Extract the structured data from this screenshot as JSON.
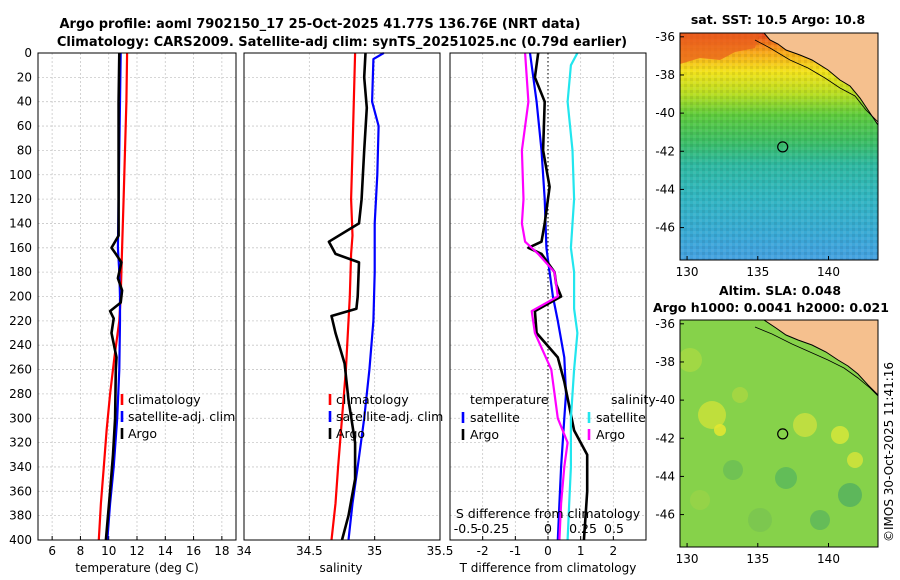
{
  "title_line1": "Argo profile: aoml 7902150_17 25-Oct-2025 41.77S 136.76E (NRT data)",
  "title_line2": "Climatology: CARS2009. Satellite-adj clim: synTS_20251025.nc (0.79d earlier)",
  "watermark": "©IMOS 30-Oct-2025 11:41:16",
  "colors": {
    "clim": "#ff0000",
    "sat": "#0000ff",
    "argo": "#000000",
    "sdiff_sat": "#22e6ee",
    "sdiff_argo": "#ff00ff",
    "land": "#f5c08e",
    "coast": "#000000"
  },
  "chart_data": [
    {
      "type": "line",
      "name": "temperature",
      "xlabel": "temperature (deg C)",
      "xlim": [
        5,
        19
      ],
      "ylim": [
        0,
        400
      ],
      "xticks": [
        6,
        8,
        10,
        12,
        14,
        16,
        18
      ],
      "yticks": [
        0,
        20,
        40,
        60,
        80,
        100,
        120,
        140,
        160,
        180,
        200,
        220,
        240,
        260,
        280,
        300,
        320,
        340,
        360,
        380,
        400
      ],
      "legend": [
        "climatology",
        "satellite-adj. clim",
        "Argo"
      ],
      "series": [
        {
          "name": "climatology",
          "color": "#ff0000",
          "points": [
            [
              11.3,
              0
            ],
            [
              11.25,
              40
            ],
            [
              11.15,
              80
            ],
            [
              11.05,
              120
            ],
            [
              10.95,
              160
            ],
            [
              10.85,
              200
            ],
            [
              10.75,
              220
            ],
            [
              10.4,
              250
            ],
            [
              10.1,
              280
            ],
            [
              9.85,
              310
            ],
            [
              9.65,
              340
            ],
            [
              9.45,
              370
            ],
            [
              9.3,
              400
            ]
          ]
        },
        {
          "name": "satellite-adj. clim",
          "color": "#0000ff",
          "points": [
            [
              10.85,
              0
            ],
            [
              10.8,
              40
            ],
            [
              10.75,
              80
            ],
            [
              10.7,
              120
            ],
            [
              10.65,
              160
            ],
            [
              10.75,
              180
            ],
            [
              10.8,
              200
            ],
            [
              10.8,
              220
            ],
            [
              10.75,
              260
            ],
            [
              10.6,
              300
            ],
            [
              10.35,
              340
            ],
            [
              10.1,
              370
            ],
            [
              9.9,
              400
            ]
          ]
        },
        {
          "name": "Argo",
          "color": "#000000",
          "points": [
            [
              10.75,
              0
            ],
            [
              10.7,
              40
            ],
            [
              10.7,
              80
            ],
            [
              10.7,
              120
            ],
            [
              10.7,
              150
            ],
            [
              10.2,
              160
            ],
            [
              10.5,
              165
            ],
            [
              10.9,
              172
            ],
            [
              10.65,
              185
            ],
            [
              10.95,
              195
            ],
            [
              10.85,
              205
            ],
            [
              10.1,
              212
            ],
            [
              10.35,
              218
            ],
            [
              10.2,
              230
            ],
            [
              10.55,
              250
            ],
            [
              10.5,
              260
            ],
            [
              10.45,
              300
            ],
            [
              10.3,
              330
            ],
            [
              10.1,
              360
            ],
            [
              9.95,
              380
            ],
            [
              9.8,
              400
            ]
          ]
        }
      ]
    },
    {
      "type": "line",
      "name": "salinity",
      "xlabel": "salinity",
      "xlim": [
        34,
        35.5
      ],
      "ylim": [
        0,
        400
      ],
      "xticks": [
        34,
        34.5,
        35,
        35.5
      ],
      "legend": [
        "climatology",
        "satellite-adj. clim",
        "Argo"
      ],
      "series": [
        {
          "name": "climatology",
          "color": "#ff0000",
          "points": [
            [
              34.85,
              0
            ],
            [
              34.84,
              40
            ],
            [
              34.83,
              80
            ],
            [
              34.82,
              120
            ],
            [
              34.83,
              150
            ],
            [
              34.82,
              165
            ],
            [
              34.81,
              200
            ],
            [
              34.8,
              220
            ],
            [
              34.78,
              260
            ],
            [
              34.75,
              300
            ],
            [
              34.72,
              340
            ],
            [
              34.7,
              370
            ],
            [
              34.67,
              400
            ]
          ]
        },
        {
          "name": "satellite-adj. clim",
          "color": "#0000ff",
          "points": [
            [
              35.07,
              0
            ],
            [
              34.99,
              5
            ],
            [
              34.98,
              40
            ],
            [
              35.03,
              60
            ],
            [
              35.02,
              100
            ],
            [
              35.0,
              140
            ],
            [
              35.0,
              180
            ],
            [
              34.99,
              220
            ],
            [
              34.96,
              260
            ],
            [
              34.92,
              300
            ],
            [
              34.87,
              340
            ],
            [
              34.83,
              370
            ],
            [
              34.8,
              400
            ]
          ]
        },
        {
          "name": "Argo",
          "color": "#000000",
          "points": [
            [
              34.93,
              0
            ],
            [
              34.92,
              20
            ],
            [
              34.94,
              45
            ],
            [
              34.92,
              80
            ],
            [
              34.9,
              120
            ],
            [
              34.88,
              140
            ],
            [
              34.65,
              155
            ],
            [
              34.7,
              165
            ],
            [
              34.88,
              172
            ],
            [
              34.87,
              200
            ],
            [
              34.86,
              210
            ],
            [
              34.67,
              216
            ],
            [
              34.7,
              230
            ],
            [
              34.77,
              255
            ],
            [
              34.8,
              285
            ],
            [
              34.85,
              320
            ],
            [
              34.85,
              350
            ],
            [
              34.8,
              380
            ],
            [
              34.75,
              400
            ]
          ]
        }
      ]
    },
    {
      "type": "line",
      "name": "difference",
      "xlabel": "T difference from climatology",
      "xlabel2": "S difference from climatology",
      "xlim": [
        -3,
        3
      ],
      "ylim": [
        0,
        400
      ],
      "xticks": [
        -2,
        -1,
        0,
        1,
        2
      ],
      "xticks_s": [
        "-0.5",
        "-0.25",
        "0",
        "0.25",
        "0.5"
      ],
      "legend_left_title": "temperature",
      "legend_right_title": "salinity",
      "legend_left": [
        "satellite",
        "Argo"
      ],
      "legend_right": [
        "satellite",
        "Argo"
      ],
      "series": [
        {
          "name": "T satellite",
          "color": "#0000ff",
          "points": [
            [
              -0.55,
              0
            ],
            [
              -0.35,
              40
            ],
            [
              -0.2,
              80
            ],
            [
              -0.1,
              120
            ],
            [
              -0.05,
              160
            ],
            [
              0.05,
              180
            ],
            [
              0.15,
              200
            ],
            [
              0.3,
              220
            ],
            [
              0.5,
              250
            ],
            [
              0.55,
              280
            ],
            [
              0.5,
              300
            ],
            [
              0.4,
              340
            ],
            [
              0.35,
              370
            ],
            [
              0.3,
              400
            ]
          ]
        },
        {
          "name": "T Argo",
          "color": "#000000",
          "points": [
            [
              -0.3,
              0
            ],
            [
              -0.4,
              20
            ],
            [
              -0.1,
              40
            ],
            [
              -0.15,
              80
            ],
            [
              0.05,
              110
            ],
            [
              -0.1,
              140
            ],
            [
              -0.2,
              155
            ],
            [
              -0.6,
              160
            ],
            [
              -0.2,
              165
            ],
            [
              0.2,
              180
            ],
            [
              0.25,
              190
            ],
            [
              0.4,
              200
            ],
            [
              -0.4,
              212
            ],
            [
              -0.35,
              230
            ],
            [
              0.3,
              250
            ],
            [
              0.5,
              270
            ],
            [
              0.8,
              310
            ],
            [
              1.2,
              330
            ],
            [
              1.2,
              360
            ],
            [
              1.15,
              380
            ],
            [
              1.1,
              400
            ]
          ]
        },
        {
          "name": "S satellite",
          "color": "#22e6ee",
          "points": [
            [
              0.9,
              0
            ],
            [
              0.7,
              10
            ],
            [
              0.6,
              40
            ],
            [
              0.75,
              80
            ],
            [
              0.8,
              120
            ],
            [
              0.7,
              160
            ],
            [
              0.8,
              180
            ],
            [
              0.8,
              210
            ],
            [
              0.9,
              230
            ],
            [
              0.8,
              260
            ],
            [
              0.7,
              300
            ],
            [
              0.7,
              340
            ],
            [
              0.65,
              370
            ],
            [
              0.6,
              400
            ]
          ]
        },
        {
          "name": "S Argo",
          "color": "#ff00ff",
          "points": [
            [
              -0.7,
              0
            ],
            [
              -0.6,
              40
            ],
            [
              -0.8,
              80
            ],
            [
              -0.75,
              120
            ],
            [
              -0.8,
              140
            ],
            [
              -0.7,
              155
            ],
            [
              -0.3,
              165
            ],
            [
              0.2,
              180
            ],
            [
              0.3,
              200
            ],
            [
              -0.5,
              212
            ],
            [
              -0.4,
              230
            ],
            [
              0.1,
              260
            ],
            [
              0.3,
              300
            ],
            [
              0.6,
              320
            ],
            [
              0.5,
              340
            ],
            [
              0.4,
              370
            ],
            [
              0.35,
              400
            ]
          ]
        }
      ]
    },
    {
      "type": "heatmap",
      "name": "sst-map",
      "title": "sat. SST: 10.5 Argo: 10.8",
      "xticks": [
        130,
        135,
        140
      ],
      "yticks": [
        -36,
        -38,
        -40,
        -42,
        -44,
        -46
      ],
      "xlim": [
        129.5,
        143.5
      ],
      "ylim": [
        -47.7,
        -35.8
      ],
      "marker": [
        136.76,
        -41.77
      ]
    },
    {
      "type": "heatmap",
      "name": "sla-map",
      "title": "Altim. SLA: 0.048",
      "subtitle": "Argo h1000: 0.0041 h2000: 0.021",
      "xticks": [
        130,
        135,
        140
      ],
      "yticks": [
        -36,
        -38,
        -40,
        -42,
        -44,
        -46
      ],
      "xlim": [
        129.5,
        143.5
      ],
      "ylim": [
        -47.7,
        -35.8
      ],
      "marker": [
        136.76,
        -41.77
      ]
    }
  ]
}
